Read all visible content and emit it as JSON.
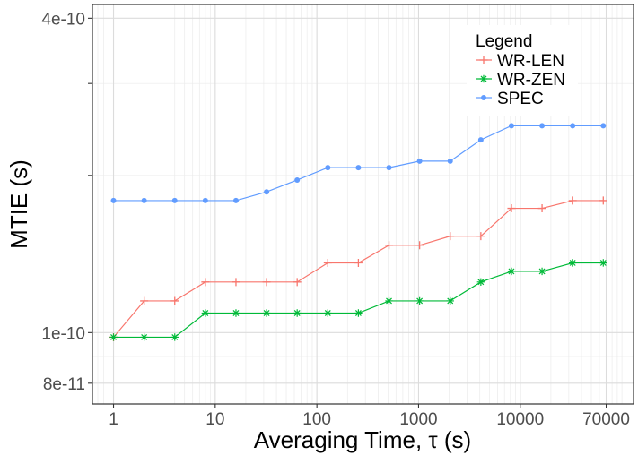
{
  "chart_data": {
    "type": "line",
    "xlabel": "Averaging Time, τ (s)",
    "ylabel": "MTIE (s)",
    "x_scale": "log",
    "y_scale": "log",
    "xlim": [
      0.62,
      130000
    ],
    "ylim": [
      7.3e-11,
      4.25e-10
    ],
    "grid": true,
    "x_ticks": [
      {
        "value": 1,
        "label": "1"
      },
      {
        "value": 10,
        "label": "10"
      },
      {
        "value": 100,
        "label": "100"
      },
      {
        "value": 1000,
        "label": "1000"
      },
      {
        "value": 10000,
        "label": "10000"
      },
      {
        "value": 70000,
        "label": "70000"
      }
    ],
    "y_ticks": [
      {
        "value": 8e-11,
        "label": "8e-11"
      },
      {
        "value": 1e-10,
        "label": "1e-10"
      },
      {
        "value": 4e-10,
        "label": "4e-10"
      }
    ],
    "x": [
      1,
      2,
      4,
      8,
      16,
      32,
      64,
      128,
      256,
      512,
      1024,
      2048,
      4096,
      8192,
      16384,
      32768,
      65536
    ],
    "legend": {
      "title": "Legend",
      "position": "top-right"
    },
    "series": [
      {
        "name": "WR-LEN",
        "color": "#f8766d",
        "marker": "plus",
        "values": [
          9.8e-11,
          1.15e-10,
          1.15e-10,
          1.25e-10,
          1.25e-10,
          1.25e-10,
          1.25e-10,
          1.36e-10,
          1.36e-10,
          1.47e-10,
          1.47e-10,
          1.53e-10,
          1.53e-10,
          1.73e-10,
          1.73e-10,
          1.79e-10,
          1.79e-10
        ]
      },
      {
        "name": "WR-ZEN",
        "color": "#00ba38",
        "marker": "asterisk",
        "values": [
          9.8e-11,
          9.8e-11,
          9.8e-11,
          1.09e-10,
          1.09e-10,
          1.09e-10,
          1.09e-10,
          1.09e-10,
          1.09e-10,
          1.15e-10,
          1.15e-10,
          1.15e-10,
          1.25e-10,
          1.31e-10,
          1.31e-10,
          1.36e-10,
          1.36e-10
        ]
      },
      {
        "name": "SPEC",
        "color": "#619cff",
        "marker": "circle",
        "values": [
          1.79e-10,
          1.79e-10,
          1.79e-10,
          1.79e-10,
          1.79e-10,
          1.86e-10,
          1.96e-10,
          2.07e-10,
          2.07e-10,
          2.07e-10,
          2.13e-10,
          2.13e-10,
          2.34e-10,
          2.49e-10,
          2.49e-10,
          2.49e-10,
          2.49e-10
        ]
      }
    ]
  }
}
